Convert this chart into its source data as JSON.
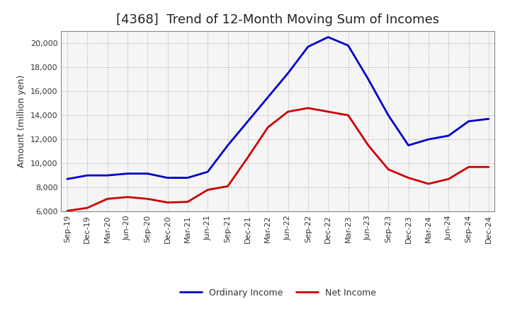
{
  "title": "[4368]  Trend of 12-Month Moving Sum of Incomes",
  "ylabel": "Amount (million yen)",
  "background_color": "#ffffff",
  "plot_bg_color": "#f5f5f5",
  "grid_color": "#999999",
  "x_labels": [
    "Sep-19",
    "Dec-19",
    "Mar-20",
    "Jun-20",
    "Sep-20",
    "Dec-20",
    "Mar-21",
    "Jun-21",
    "Sep-21",
    "Dec-21",
    "Mar-22",
    "Jun-22",
    "Sep-22",
    "Dec-22",
    "Mar-23",
    "Jun-23",
    "Sep-23",
    "Dec-23",
    "Mar-24",
    "Jun-24",
    "Sep-24",
    "Dec-24"
  ],
  "ordinary_income": [
    8700,
    9000,
    9000,
    9150,
    9150,
    8800,
    8800,
    9300,
    11500,
    13500,
    15500,
    17500,
    19700,
    20500,
    19800,
    17000,
    14000,
    11500,
    12000,
    12300,
    13500,
    13700
  ],
  "net_income": [
    6050,
    6300,
    7050,
    7200,
    7050,
    6750,
    6800,
    7800,
    8100,
    10500,
    13000,
    14300,
    14600,
    14300,
    14000,
    11500,
    9500,
    8800,
    8300,
    8700,
    9700,
    9700
  ],
  "ordinary_color": "#0000cc",
  "net_color": "#cc0000",
  "ylim_min": 6000,
  "ylim_max": 21000,
  "yticks": [
    6000,
    8000,
    10000,
    12000,
    14000,
    16000,
    18000,
    20000
  ],
  "line_width": 2.0,
  "title_fontsize": 13,
  "ylabel_fontsize": 9,
  "tick_fontsize": 8,
  "legend_fontsize": 9
}
